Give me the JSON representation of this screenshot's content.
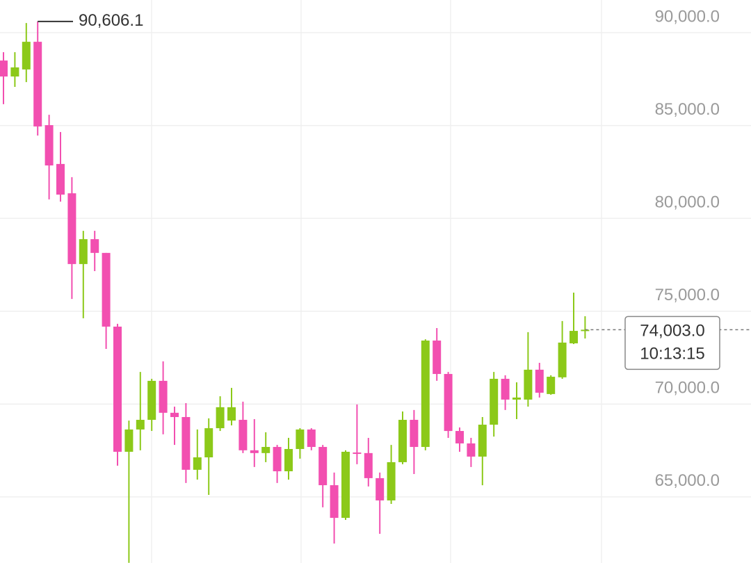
{
  "chart_data": {
    "type": "candlestick",
    "up_color": "#8cc919",
    "down_color": "#f24fb0",
    "ylim": [
      61440,
      91760
    ],
    "yticks": [
      {
        "value": 65000,
        "label": "65,000.0"
      },
      {
        "value": 70000,
        "label": "70,000.0"
      },
      {
        "value": 75000,
        "label": "75,000.0"
      },
      {
        "value": 80000,
        "label": "80,000.0"
      },
      {
        "value": 85000,
        "label": "85,000.0"
      },
      {
        "value": 90000,
        "label": "90,000.0"
      }
    ],
    "grid": true,
    "high_label": {
      "value": 90606.1,
      "label": "90,606.1"
    },
    "last_price": {
      "value": 74003,
      "label": "74,003.0"
    },
    "countdown": "10:13:15",
    "open": [
      88500,
      87640,
      88020,
      89510,
      85020,
      82930,
      81350,
      77540,
      78880,
      78140,
      74170,
      67430,
      68630,
      69150,
      71250,
      69530,
      69300,
      66460,
      67130,
      68700,
      69110,
      69150,
      67510,
      67360,
      67690,
      66380,
      67580,
      68630,
      67690,
      65630,
      63870,
      67390,
      67360,
      66010,
      64810,
      66870,
      69150,
      67690,
      73420,
      71620,
      68550,
      67880,
      67170,
      68890,
      71360,
      70240,
      70240,
      71850,
      70540,
      71440,
      73270,
      73940
    ],
    "high": [
      88950,
      88950,
      90520,
      90606.1,
      85580,
      84650,
      82220,
      79330,
      79330,
      78140,
      74320,
      69110,
      71730,
      71360,
      72300,
      69860,
      70050,
      68630,
      69230,
      70420,
      70870,
      70130,
      69190,
      68480,
      67800,
      68180,
      68700,
      68700,
      67800,
      66310,
      67510,
      69980,
      68180,
      66310,
      67800,
      69600,
      69680,
      73490,
      74090,
      71730,
      68740,
      68180,
      69300,
      71730,
      71550,
      71170,
      73870,
      72220,
      71550,
      74470,
      76000,
      74730
    ],
    "low": [
      86150,
      87080,
      87340,
      84460,
      81020,
      80900,
      75660,
      74620,
      77160,
      72970,
      66680,
      61450,
      67510,
      68550,
      68370,
      67800,
      65750,
      65930,
      65110,
      68550,
      68850,
      67360,
      66610,
      66870,
      65750,
      65930,
      67060,
      67510,
      64440,
      62490,
      63760,
      66760,
      65560,
      63010,
      64620,
      66760,
      66230,
      67510,
      71250,
      68180,
      67430,
      66610,
      65630,
      68250,
      69680,
      69190,
      69860,
      70350,
      70500,
      71360,
      73230,
      73530
    ],
    "close": [
      87640,
      88130,
      89510,
      84950,
      82850,
      81280,
      77540,
      78880,
      78140,
      74170,
      67430,
      68630,
      69150,
      71250,
      69530,
      69300,
      66460,
      67130,
      68700,
      69830,
      69830,
      67510,
      67360,
      67690,
      66380,
      67580,
      68630,
      67690,
      65630,
      63870,
      67430,
      67360,
      66010,
      64810,
      66870,
      69150,
      67690,
      73420,
      71620,
      68550,
      67880,
      67170,
      68890,
      71360,
      70240,
      70350,
      71850,
      70610,
      71470,
      73310,
      73940,
      74003
    ]
  }
}
